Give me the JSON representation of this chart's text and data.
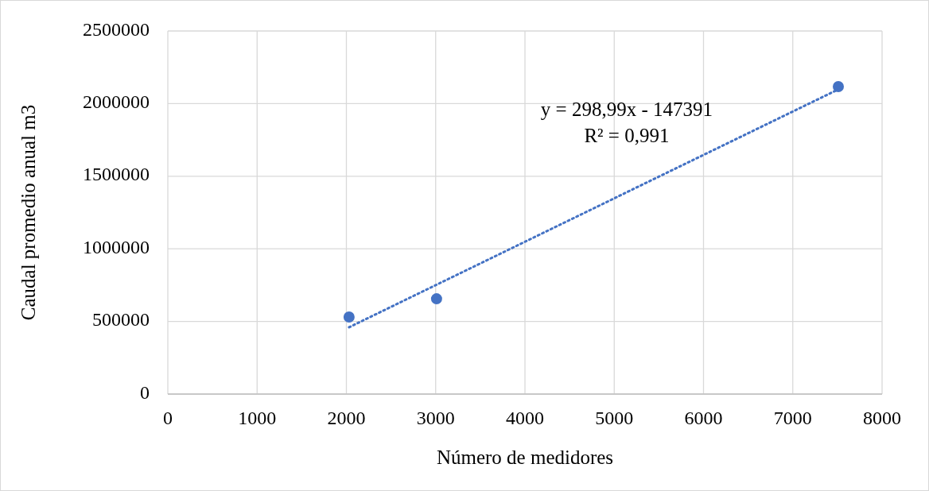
{
  "chart_data": {
    "type": "scatter",
    "xlabel": "Número de medidores",
    "ylabel": "Caudal promedio anual m3",
    "xlim": [
      0,
      8000
    ],
    "xticks": [
      0,
      1000,
      2000,
      3000,
      4000,
      5000,
      6000,
      7000,
      8000
    ],
    "ylim": [
      0,
      2500000
    ],
    "yticks": [
      0,
      500000,
      1000000,
      1500000,
      2000000,
      2500000
    ],
    "grid": true,
    "series": [
      {
        "color": "#4472c4",
        "marker": "circle",
        "x": [
          2030,
          3010,
          7510
        ],
        "values": [
          531000,
          656000,
          2117000
        ]
      },
      {
        "type": "line",
        "color": "#4472c4",
        "line_style": "dotted",
        "x": [
          2030,
          7510
        ],
        "values": [
          460000,
          2098000
        ]
      }
    ],
    "annotations": [
      "y = 298,99x - 147391",
      "R² = 0,991"
    ]
  }
}
